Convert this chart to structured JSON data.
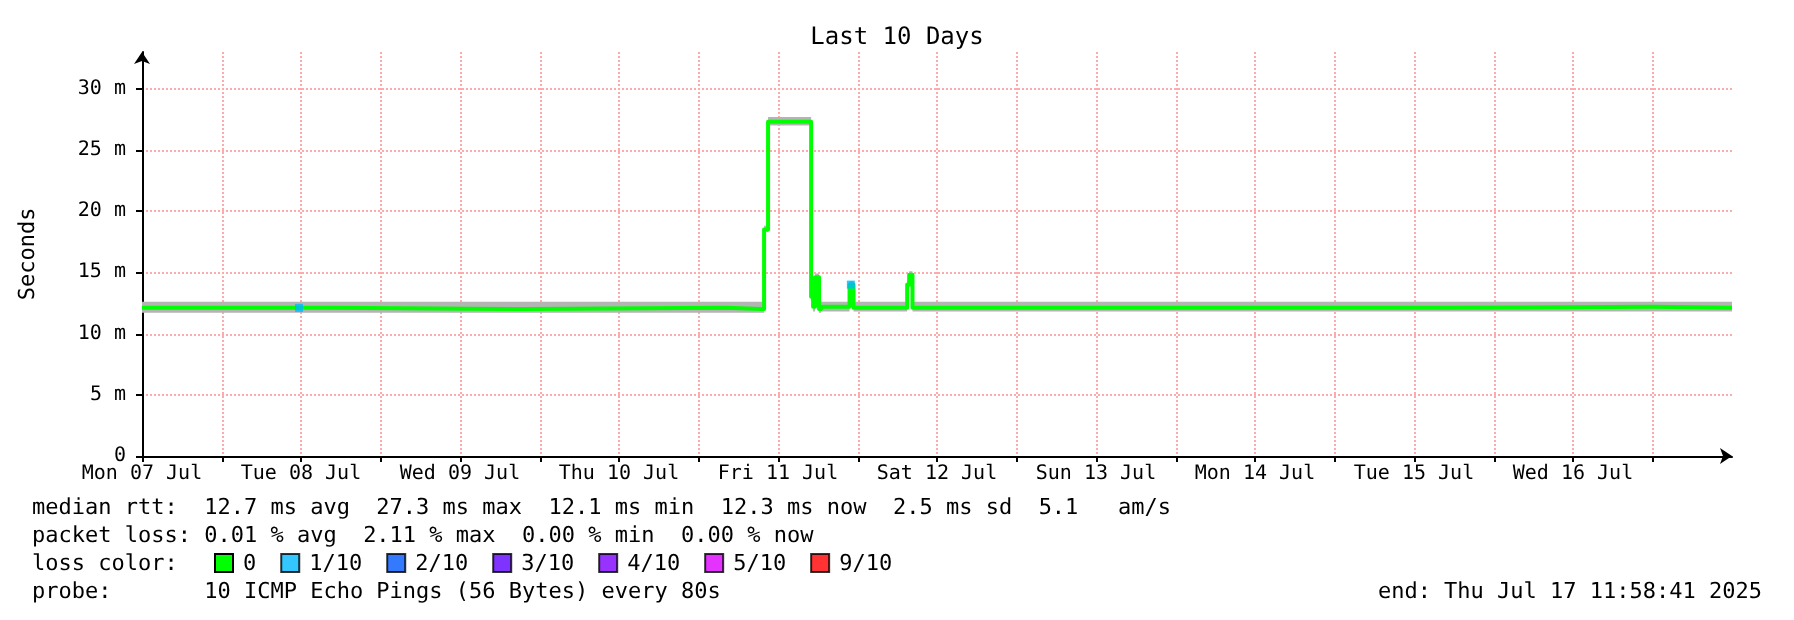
{
  "chart_data": {
    "type": "step",
    "title": "Last 10 Days",
    "ylabel": "Seconds",
    "xlim": [
      "2025-07-07T12:00",
      "2025-07-17T12:00"
    ],
    "ylim": [
      0,
      33
    ],
    "xticks": [
      {
        "value": "2025-07-07T12:00",
        "label": "Mon 07 Jul"
      },
      {
        "value": "2025-07-08T00:00",
        "label": null
      },
      {
        "value": "2025-07-08T12:00",
        "label": "Tue 08 Jul"
      },
      {
        "value": "2025-07-09T00:00",
        "label": null
      },
      {
        "value": "2025-07-09T12:00",
        "label": "Wed 09 Jul"
      },
      {
        "value": "2025-07-10T00:00",
        "label": null
      },
      {
        "value": "2025-07-10T12:00",
        "label": "Thu 10 Jul"
      },
      {
        "value": "2025-07-11T00:00",
        "label": null
      },
      {
        "value": "2025-07-11T12:00",
        "label": "Fri 11 Jul"
      },
      {
        "value": "2025-07-12T00:00",
        "label": null
      },
      {
        "value": "2025-07-12T12:00",
        "label": "Sat 12 Jul"
      },
      {
        "value": "2025-07-13T00:00",
        "label": null
      },
      {
        "value": "2025-07-13T12:00",
        "label": "Sun 13 Jul"
      },
      {
        "value": "2025-07-14T00:00",
        "label": null
      },
      {
        "value": "2025-07-14T12:00",
        "label": "Mon 14 Jul"
      },
      {
        "value": "2025-07-15T00:00",
        "label": null
      },
      {
        "value": "2025-07-15T12:00",
        "label": "Tue 15 Jul"
      },
      {
        "value": "2025-07-16T00:00",
        "label": null
      },
      {
        "value": "2025-07-16T12:00",
        "label": "Wed 16 Jul"
      },
      {
        "value": "2025-07-17T00:00",
        "label": null
      }
    ],
    "yticks": [
      0,
      {
        "value": 5,
        "label": "5 m"
      },
      {
        "value": 10,
        "label": "10 m"
      },
      {
        "value": 15,
        "label": "15 m"
      },
      {
        "value": 20,
        "label": "20 m"
      },
      {
        "value": 25,
        "label": "25 m"
      },
      {
        "value": 30,
        "label": "30 m"
      }
    ],
    "grid": true,
    "legend": "bottom left",
    "legend_title": "loss color:",
    "series": [
      {
        "name": "0",
        "color": "#00ff00",
        "x": [
          "2025-07-07T12:00",
          "2025-07-08T16:00",
          "2025-07-09T22:00",
          "2025-07-11T04:00",
          "2025-07-11T09:36",
          "2025-07-11T09:54",
          "2025-07-11T10:30",
          "2025-07-11T16:42",
          "2025-07-11T17:00",
          "2025-07-11T17:18",
          "2025-07-11T17:36",
          "2025-07-11T18:12",
          "2025-07-11T18:30",
          "2025-07-11T22:30",
          "2025-07-11T22:48",
          "2025-07-11T23:24",
          "2025-07-12T07:00",
          "2025-07-12T07:30",
          "2025-07-12T07:48",
          "2025-07-12T08:18",
          "2025-07-13T06:00",
          "2025-07-14T12:00",
          "2025-07-15T18:00",
          "2025-07-17T00:00",
          "2025-07-17T12:00"
        ],
        "values": [
          12.1,
          12.0,
          12.1,
          12.0,
          12.0,
          18.5,
          27.3,
          27.3,
          13.0,
          12.2,
          14.6,
          12.0,
          12.2,
          12.2,
          14.0,
          12.1,
          12.1,
          14.0,
          14.8,
          12.1,
          12.1,
          12.1,
          12.2,
          12.1,
          12.1
        ],
        "lower": [
          11.7,
          11.7,
          11.7,
          11.7,
          11.7,
          18.3,
          27.0,
          27.0,
          12.7,
          11.8,
          14.3,
          11.7,
          11.8,
          11.8,
          13.7,
          11.8,
          11.8,
          13.7,
          14.5,
          11.8,
          11.8,
          11.8,
          11.8,
          11.8,
          11.8
        ],
        "upper": [
          12.6,
          12.6,
          12.6,
          12.6,
          12.6,
          18.8,
          27.7,
          27.7,
          13.3,
          12.6,
          14.9,
          12.6,
          12.6,
          12.6,
          14.3,
          12.6,
          12.6,
          14.3,
          15.1,
          12.6,
          12.6,
          12.6,
          12.6,
          12.6,
          12.6
        ]
      },
      {
        "name": "1/10",
        "type": "scatter",
        "marker": "square",
        "color": "#00b8ff",
        "x": [
          "2025-07-08T11:42",
          "2025-07-11T23:00"
        ],
        "values": [
          12.1,
          14.0
        ]
      },
      {
        "name": "2/10",
        "type": "scatter",
        "marker": "square",
        "color": "#0059ff"
      },
      {
        "name": "3/10",
        "type": "scatter",
        "marker": "square",
        "color": "#5e00ff"
      },
      {
        "name": "4/10",
        "type": "scatter",
        "marker": "square",
        "color": "#7e00ff"
      },
      {
        "name": "5/10",
        "type": "scatter",
        "marker": "square",
        "color": "#dd00ff"
      },
      {
        "name": "9/10",
        "type": "scatter",
        "marker": "square",
        "color": "#ff0000"
      }
    ],
    "annotations": [
      "median rtt:  12.7 ms avg  27.3 ms max  12.1 ms min  12.3 ms now  2.5 ms sd  5.1   am/s",
      "packet loss: 0.01 % avg  2.11 % max  0.00 % min  0.00 % now",
      "probe:       10 ICMP Echo Pings (56 Bytes) every 80s",
      "end: Thu Jul 17 11:58:41 2025"
    ]
  }
}
